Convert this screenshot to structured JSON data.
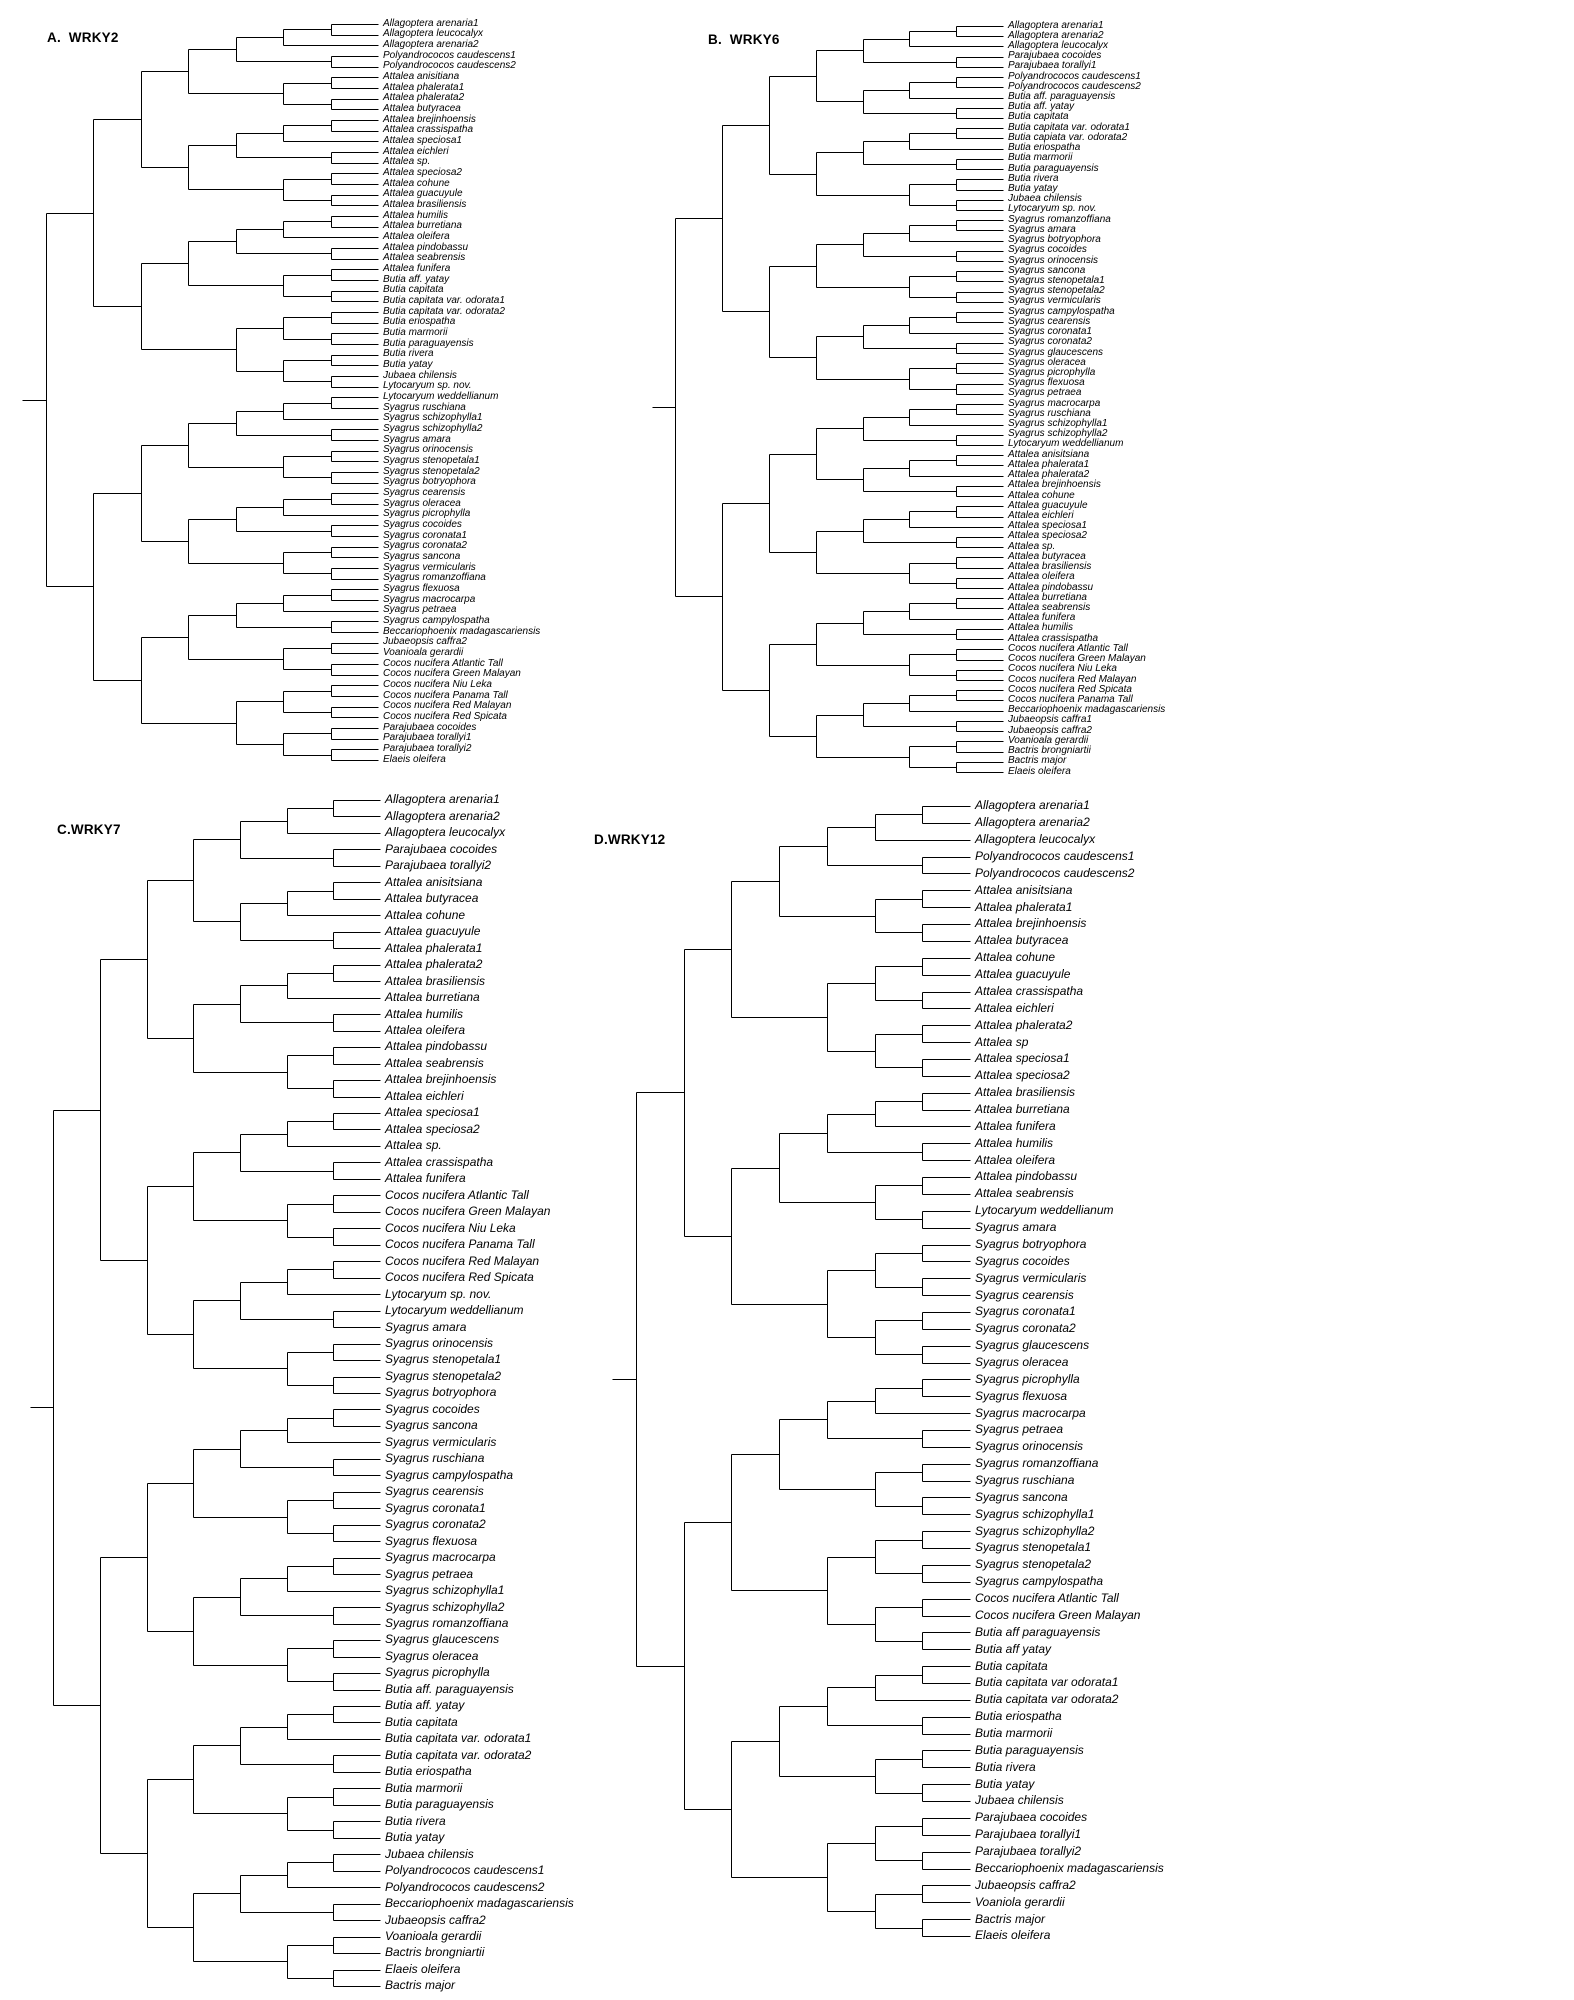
{
  "figure": {
    "background": "#ffffff",
    "line_color": "#000000",
    "text_color": "#000000",
    "description": "Four maximum-parsimony style cladograms of palm taxa for WRKY gene trees"
  },
  "panels": [
    {
      "id": "A",
      "title": "A.  WRKY2",
      "tips": [
        "Allagoptera arenaria1",
        "Allagoptera leucocalyx",
        "Allagoptera arenaria2",
        "Polyandrococos caudescens1",
        "Polyandrococos caudescens2",
        "Attalea anisitiana",
        "Attalea phalerata1",
        "Attalea phalerata2",
        "Attalea butyracea",
        "Attalea brejinhoensis",
        "Attalea crassispatha",
        "Attalea speciosa1",
        "Attalea eichleri",
        "Attalea sp.",
        "Attalea speciosa2",
        "Attalea cohune",
        "Attalea guacuyule",
        "Attalea brasiliensis",
        "Attalea humilis",
        "Attalea burretiana",
        "Attalea oleifera",
        "Attalea pindobassu",
        "Attalea seabrensis",
        "Attalea funifera",
        "Butia aff. yatay",
        "Butia capitata",
        "Butia capitata var. odorata1",
        "Butia capitata var. odorata2",
        "Butia eriospatha",
        "Butia marmorii",
        "Butia paraguayensis",
        "Butia rivera",
        "Butia yatay",
        "Jubaea chilensis",
        "Lytocaryum sp. nov.",
        "Lytocaryum weddellianum",
        "Syagrus ruschiana",
        "Syagrus schizophylla1",
        "Syagrus schizophylla2",
        "Syagrus amara",
        "Syagrus orinocensis",
        "Syagrus stenopetala1",
        "Syagrus stenopetala2",
        "Syagrus botryophora",
        "Syagrus cearensis",
        "Syagrus oleracea",
        "Syagrus picrophylla",
        "Syagrus cocoides",
        "Syagrus coronata1",
        "Syagrus coronata2",
        "Syagrus sancona",
        "Syagrus vermicularis",
        "Syagrus romanzoffiana",
        "Syagrus flexuosa",
        "Syagrus macrocarpa",
        "Syagrus petraea",
        "Syagrus campylospatha",
        "Beccariophoenix madagascariensis",
        "Jubaeopsis caffra2",
        "Voanioala gerardii",
        "Cocos nucifera Atlantic Tall",
        "Cocos nucifera Green Malayan",
        "Cocos nucifera Niu Leka",
        "Cocos nucifera Panama Tall",
        "Cocos nucifera Red Malayan",
        "Cocos nucifera Red Spicata",
        "Parajubaea cocoides",
        "Parajubaea torallyi1",
        "Parajubaea torallyi2",
        "Elaeis oleifera"
      ]
    },
    {
      "id": "B",
      "title": "B.  WRKY6",
      "tips": [
        "Allagoptera arenaria1",
        "Allagoptera arenaria2",
        "Allagoptera leucocalyx",
        "Parajubaea cocoides",
        "Parajubaea torallyi1",
        "Polyandrococos caudescens1",
        "Polyandrococos caudescens2",
        "Butia aff. paraguayensis",
        "Butia aff. yatay",
        "Butia capitata",
        "Butia capitata var. odorata1",
        "Butia capiata var. odorata2",
        "Butia eriospatha",
        "Butia marmorii",
        "Butia paraguayensis",
        "Butia rivera",
        "Butia yatay",
        "Jubaea chilensis",
        "Lytocaryum sp. nov.",
        "Syagrus romanzoffiana",
        "Syagrus amara",
        "Syagrus botryophora",
        "Syagrus cocoides",
        "Syagrus orinocensis",
        "Syagrus sancona",
        "Syagrus stenopetala1",
        "Syagrus stenopetala2",
        "Syagrus vermicularis",
        "Syagrus campylospatha",
        "Syagrus cearensis",
        "Syagrus coronata1",
        "Syagrus coronata2",
        "Syagrus glaucescens",
        "Syagrus oleracea",
        "Syagrus picrophylla",
        "Syagrus flexuosa",
        "Syagrus petraea",
        "Syagrus macrocarpa",
        "Syagrus ruschiana",
        "Syagrus schizophylla1",
        "Syagrus schizophylla2",
        "Lytocaryum weddellianum",
        "Attalea anisitsiana",
        "Attalea phalerata1",
        "Attalea phalerata2",
        "Attalea brejinhoensis",
        "Attalea cohune",
        "Attalea guacuyule",
        "Attalea eichleri",
        "Attalea speciosa1",
        "Attalea speciosa2",
        "Attalea sp.",
        "Attalea butyracea",
        "Attalea brasiliensis",
        "Attalea oleifera",
        "Attalea pindobassu",
        "Attalea burretiana",
        "Attalea seabrensis",
        "Attalea funifera",
        "Attalea humilis",
        "Attalea crassispatha",
        "Cocos nucifera Atlantic Tall",
        "Cocos nucifera Green Malayan",
        "Cocos nucifera Niu Leka",
        "Cocos nucifera Red Malayan",
        "Cocos nucifera Red Spicata",
        "Cocos nucifera Panama Tall",
        "Beccariophoenix madagascariensis",
        "Jubaeopsis caffra1",
        "Jubaeopsis caffra2",
        "Voanioala gerardii",
        "Bactris brongniartii",
        "Bactris major",
        "Elaeis oleifera"
      ]
    },
    {
      "id": "C",
      "title": "C.WRKY7",
      "tips": [
        "Allagoptera arenaria1",
        "Allagoptera arenaria2",
        "Allagoptera leucocalyx",
        "Parajubaea cocoides",
        "Parajubaea torallyi2",
        "Attalea anisitsiana",
        "Attalea butyracea",
        "Attalea cohune",
        "Attalea guacuyule",
        "Attalea phalerata1",
        "Attalea phalerata2",
        "Attalea brasiliensis",
        "Attalea burretiana",
        "Attalea humilis",
        "Attalea oleifera",
        "Attalea pindobassu",
        "Attalea seabrensis",
        "Attalea brejinhoensis",
        "Attalea eichleri",
        "Attalea speciosa1",
        "Attalea speciosa2",
        "Attalea sp.",
        "Attalea crassispatha",
        "Attalea funifera",
        "Cocos nucifera Atlantic Tall",
        "Cocos nucifera Green Malayan",
        "Cocos nucifera Niu Leka",
        "Cocos nucifera Panama Tall",
        "Cocos nucifera Red Malayan",
        "Cocos nucifera Red Spicata",
        "Lytocaryum sp. nov.",
        "Lytocaryum weddellianum",
        "Syagrus amara",
        "Syagrus orinocensis",
        "Syagrus stenopetala1",
        "Syagrus stenopetala2",
        "Syagrus botryophora",
        "Syagrus cocoides",
        "Syagrus sancona",
        "Syagrus vermicularis",
        "Syagrus ruschiana",
        "Syagrus campylospatha",
        "Syagrus cearensis",
        "Syagrus coronata1",
        "Syagrus coronata2",
        "Syagrus flexuosa",
        "Syagrus macrocarpa",
        "Syagrus petraea",
        "Syagrus schizophylla1",
        "Syagrus schizophylla2",
        "Syagrus romanzoffiana",
        "Syagrus glaucescens",
        "Syagrus oleracea",
        "Syagrus picrophylla",
        "Butia aff. paraguayensis",
        "Butia aff. yatay",
        "Butia capitata",
        "Butia capitata var. odorata1",
        "Butia capitata var. odorata2",
        "Butia eriospatha",
        "Butia marmorii",
        "Butia paraguayensis",
        "Butia rivera",
        "Butia yatay",
        "Jubaea chilensis",
        "Polyandrococos caudescens1",
        "Polyandrococos caudescens2",
        "Beccariophoenix madagascariensis",
        "Jubaeopsis caffra2",
        "Voanioala gerardii",
        "Bactris brongniartii",
        "Elaeis oleifera",
        "Bactris major"
      ]
    },
    {
      "id": "D",
      "title": "D.WRKY12",
      "tips": [
        "Allagoptera arenaria1",
        "Allagoptera arenaria2",
        "Allagoptera leucocalyx",
        "Polyandrococos caudescens1",
        "Polyandrococos caudescens2",
        "Attalea anisitsiana",
        "Attalea phalerata1",
        "Attalea brejinhoensis",
        "Attalea butyracea",
        "Attalea cohune",
        "Attalea guacuyule",
        "Attalea crassispatha",
        "Attalea eichleri",
        "Attalea phalerata2",
        "Attalea sp",
        "Attalea speciosa1",
        "Attalea speciosa2",
        "Attalea brasiliensis",
        "Attalea burretiana",
        "Attalea funifera",
        "Attalea humilis",
        "Attalea oleifera",
        "Attalea pindobassu",
        "Attalea seabrensis",
        "Lytocaryum weddellianum",
        "Syagrus amara",
        "Syagrus botryophora",
        "Syagrus cocoides",
        "Syagrus vermicularis",
        "Syagrus cearensis",
        "Syagrus coronata1",
        "Syagrus coronata2",
        "Syagrus glaucescens",
        "Syagrus oleracea",
        "Syagrus picrophylla",
        "Syagrus flexuosa",
        "Syagrus macrocarpa",
        "Syagrus petraea",
        "Syagrus orinocensis",
        "Syagrus romanzoffiana",
        "Syagrus ruschiana",
        "Syagrus sancona",
        "Syagrus schizophylla1",
        "Syagrus schizophylla2",
        "Syagrus stenopetala1",
        "Syagrus stenopetala2",
        "Syagrus campylospatha",
        "Cocos nucifera Atlantic Tall",
        "Cocos nucifera Green Malayan",
        "Butia aff paraguayensis",
        "Butia aff yatay",
        "Butia capitata",
        "Butia capitata var odorata1",
        "Butia capitata var odorata2",
        "Butia eriospatha",
        "Butia marmorii",
        "Butia paraguayensis",
        "Butia rivera",
        "Butia yatay",
        "Jubaea chilensis",
        "Parajubaea cocoides",
        "Parajubaea torallyi1",
        "Parajubaea torallyi2",
        "Beccariophoenix madagascariensis",
        "Jubaeopsis caffra2",
        "Voaniola gerardii",
        "Bactris major",
        "Elaeis oleifera"
      ]
    }
  ]
}
